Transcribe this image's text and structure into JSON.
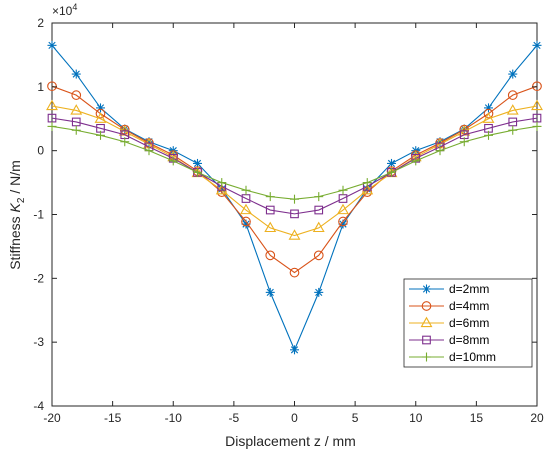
{
  "chart_data": {
    "type": "line",
    "title": "",
    "xlabel": "Displacement z / mm",
    "ylabel_parts": {
      "main": "Stiffness ",
      "italic": "K",
      "sub": "2",
      "rest": " / N/m"
    },
    "exponent_label": "×10",
    "exponent_power": "4",
    "xlim": [
      -20,
      20
    ],
    "ylim": [
      -4,
      2
    ],
    "xticks": [
      "-20",
      "-15",
      "-10",
      "-5",
      "0",
      "5",
      "10",
      "15",
      "20"
    ],
    "yticks": [
      "2",
      "1",
      "0",
      "-1",
      "-2",
      "-3",
      "-4"
    ],
    "grid": false,
    "legend_position": "lower-right",
    "x": [
      -20,
      -18,
      -16,
      -14,
      -12,
      -10,
      -8,
      -6,
      -4,
      -2,
      0,
      2,
      4,
      6,
      8,
      10,
      12,
      14,
      16,
      18,
      20
    ],
    "series": [
      {
        "name": "d=2mm",
        "color": "#0072BD",
        "marker": "asterisk",
        "values": [
          1.65,
          1.2,
          0.67,
          0.34,
          0.14,
          0.0,
          -0.2,
          -0.6,
          -1.15,
          -2.22,
          -3.12,
          -2.22,
          -1.15,
          -0.6,
          -0.2,
          0.0,
          0.14,
          0.34,
          0.67,
          1.2,
          1.65
        ]
      },
      {
        "name": "d=4mm",
        "color": "#D95319",
        "marker": "circle",
        "values": [
          1.01,
          0.87,
          0.58,
          0.33,
          0.12,
          -0.07,
          -0.32,
          -0.65,
          -1.11,
          -1.64,
          -1.91,
          -1.64,
          -1.11,
          -0.65,
          -0.32,
          -0.07,
          0.12,
          0.33,
          0.58,
          0.87,
          1.01
        ]
      },
      {
        "name": "d=6mm",
        "color": "#EDB120",
        "marker": "triangle",
        "values": [
          0.7,
          0.63,
          0.5,
          0.3,
          0.1,
          -0.1,
          -0.35,
          -0.62,
          -0.93,
          -1.21,
          -1.33,
          -1.21,
          -0.93,
          -0.62,
          -0.35,
          -0.1,
          0.1,
          0.3,
          0.5,
          0.63,
          0.7
        ]
      },
      {
        "name": "d=8mm",
        "color": "#7E2F8E",
        "marker": "square",
        "values": [
          0.51,
          0.45,
          0.35,
          0.25,
          0.06,
          -0.12,
          -0.34,
          -0.56,
          -0.75,
          -0.93,
          -0.99,
          -0.93,
          -0.75,
          -0.56,
          -0.34,
          -0.12,
          0.06,
          0.25,
          0.35,
          0.45,
          0.51
        ]
      },
      {
        "name": "d=10mm",
        "color": "#77AC30",
        "marker": "plus",
        "values": [
          0.38,
          0.32,
          0.24,
          0.14,
          0.0,
          -0.16,
          -0.34,
          -0.5,
          -0.62,
          -0.72,
          -0.76,
          -0.72,
          -0.62,
          -0.5,
          -0.34,
          -0.16,
          0.0,
          0.14,
          0.24,
          0.32,
          0.38
        ]
      }
    ]
  }
}
